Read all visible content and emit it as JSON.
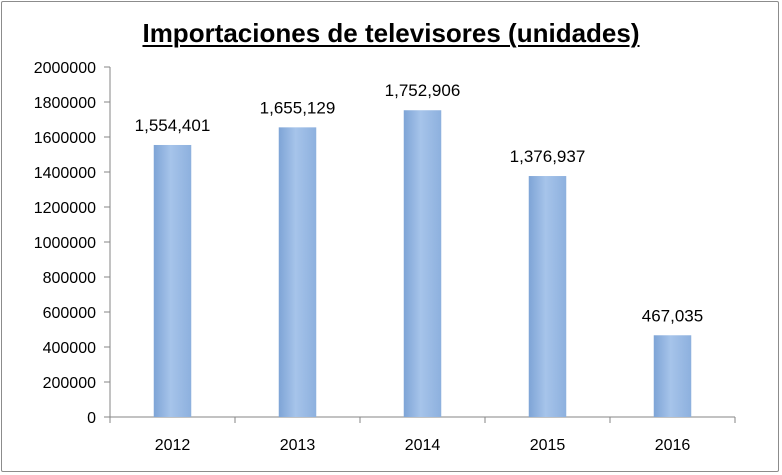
{
  "chart_data": {
    "type": "bar",
    "title": "Importaciones de televisores (unidades)",
    "categories": [
      "2012",
      "2013",
      "2014",
      "2015",
      "2016"
    ],
    "values": [
      1554401,
      1655129,
      1752906,
      1376937,
      467035
    ],
    "data_labels": [
      "1,554,401",
      "1,655,129",
      "1,752,906",
      "1,376,937",
      "467,035"
    ],
    "y_ticks": [
      "0",
      "200000",
      "400000",
      "600000",
      "800000",
      "1000000",
      "1200000",
      "1400000",
      "1600000",
      "1800000",
      "2000000"
    ],
    "ylim": [
      0,
      2000000
    ],
    "grid": false,
    "legend": "none",
    "bar_color": "#9dbde6",
    "bar_color_dark": "#7ba0d4"
  }
}
